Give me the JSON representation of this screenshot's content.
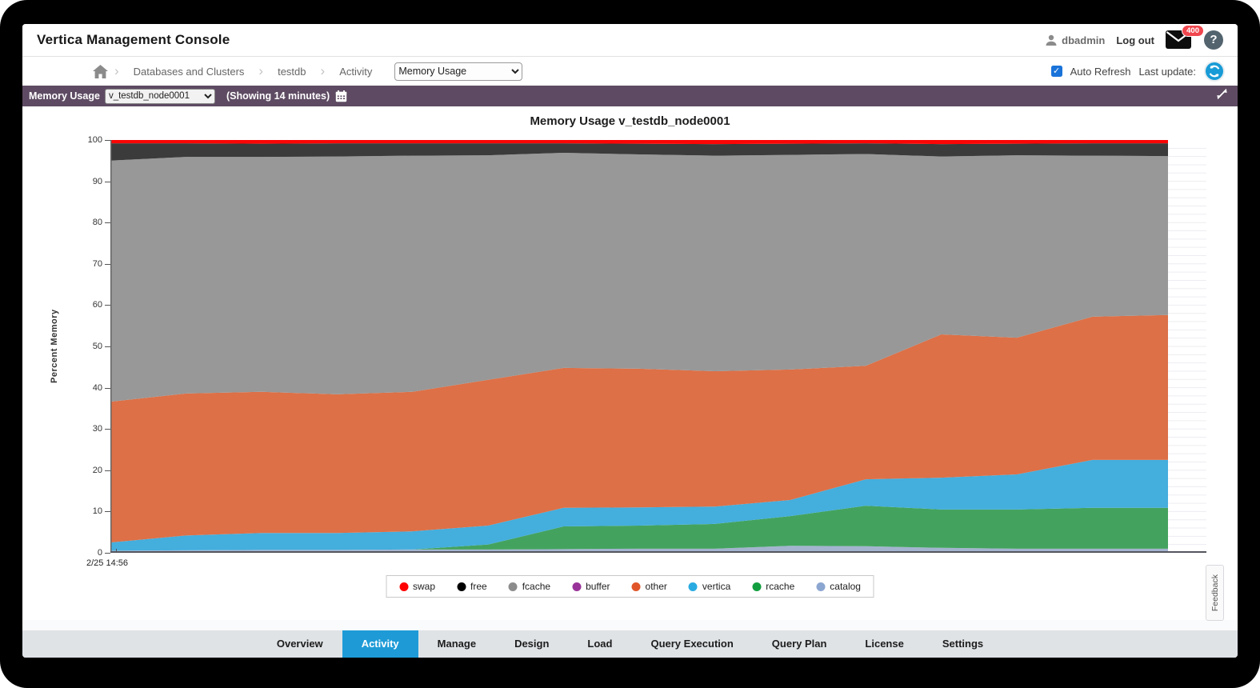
{
  "header": {
    "title": "Vertica Management Console",
    "user": "dbadmin",
    "logout_label": "Log out",
    "mail_badge": "400",
    "help_label": "?"
  },
  "breadcrumb": {
    "items": [
      "Databases and Clusters",
      "testdb",
      "Activity"
    ],
    "view_select_value": "Memory Usage",
    "auto_refresh_label": "Auto Refresh",
    "auto_refresh_checked": "✓",
    "last_update_label": "Last update:"
  },
  "toolbar": {
    "title": "Memory Usage",
    "node_select_value": "v_testdb_node0001",
    "showing_label": "(Showing 14 minutes)"
  },
  "chart_data": {
    "type": "area",
    "stacked": true,
    "title": "Memory Usage v_testdb_node0001",
    "ylabel": "Percent Memory",
    "ylim": [
      0,
      100
    ],
    "yticks": [
      0,
      10,
      20,
      30,
      40,
      50,
      60,
      70,
      80,
      90,
      100
    ],
    "grid": "horizontal-minor-2pct",
    "x_start_label": "2/25 14:56",
    "x_window_minutes": 14,
    "x_minutes": [
      0,
      1,
      2,
      3,
      4,
      5,
      6,
      7,
      8,
      9,
      10,
      11,
      12,
      13,
      14
    ],
    "series": [
      {
        "name": "catalog",
        "color": "#a3b4cf",
        "values": [
          0.5,
          0.6,
          0.7,
          0.7,
          0.8,
          0.8,
          0.9,
          1.0,
          1.0,
          1.7,
          1.6,
          1.2,
          1.0,
          1.0,
          1.0
        ]
      },
      {
        "name": "rcache",
        "color": "#43a35e",
        "values": [
          0,
          0,
          0,
          0,
          0,
          1.2,
          5.5,
          5.6,
          6.0,
          7.2,
          9.8,
          9.3,
          9.5,
          9.9,
          9.9
        ]
      },
      {
        "name": "vertica",
        "color": "#44aedd",
        "values": [
          2.0,
          3.6,
          4.1,
          4.1,
          4.4,
          4.6,
          4.5,
          4.4,
          4.2,
          3.9,
          6.4,
          7.7,
          8.5,
          11.6,
          11.6
        ]
      },
      {
        "name": "other",
        "color": "#dd7047",
        "values": [
          34.1,
          34.4,
          34.2,
          33.6,
          33.8,
          35.3,
          33.9,
          33.6,
          32.8,
          31.6,
          27.5,
          34.7,
          33.1,
          34.7,
          35.1
        ]
      },
      {
        "name": "buffer",
        "color": "#993399",
        "values": [
          0,
          0,
          0,
          0,
          0,
          0,
          0,
          0,
          0,
          0,
          0,
          0,
          0,
          0,
          0
        ]
      },
      {
        "name": "fcache",
        "color": "#989898",
        "values": [
          58.4,
          57.3,
          56.9,
          57.6,
          57.2,
          54.4,
          52.1,
          51.9,
          52.2,
          52.0,
          51.3,
          43.1,
          44.2,
          39.0,
          38.5
        ]
      },
      {
        "name": "free",
        "color": "#3b3b3b",
        "values": [
          4.2,
          3.3,
          3.2,
          3.2,
          3.0,
          2.9,
          2.3,
          2.6,
          2.8,
          2.7,
          2.6,
          3.0,
          2.8,
          3.0,
          3.1
        ]
      },
      {
        "name": "swap",
        "color": "#fb0505",
        "values": [
          0.8,
          0.8,
          0.9,
          0.8,
          0.8,
          0.8,
          0.8,
          0.9,
          1.0,
          0.9,
          0.8,
          1.0,
          0.9,
          0.8,
          0.8
        ]
      }
    ],
    "legend_position": "bottom-center"
  },
  "legend": {
    "items": [
      {
        "label": "swap",
        "color": "#ff0000"
      },
      {
        "label": "free",
        "color": "#000000"
      },
      {
        "label": "fcache",
        "color": "#8c8c8c"
      },
      {
        "label": "buffer",
        "color": "#993399"
      },
      {
        "label": "other",
        "color": "#e0562a"
      },
      {
        "label": "vertica",
        "color": "#29abe2"
      },
      {
        "label": "rcache",
        "color": "#129e3f"
      },
      {
        "label": "catalog",
        "color": "#8ba6d0"
      }
    ]
  },
  "feedback": {
    "label": "Feedback"
  },
  "tabs": {
    "active": "Activity",
    "items": [
      "Overview",
      "Activity",
      "Manage",
      "Design",
      "Load",
      "Query Execution",
      "Query Plan",
      "License",
      "Settings"
    ]
  },
  "colors": {
    "toolbar_bg": "#5e4b63",
    "active_tab": "#1e9bd7",
    "tabbar_bg": "#dfe3e6",
    "axis": "#55555f",
    "minor_grid": "#ededf2"
  }
}
